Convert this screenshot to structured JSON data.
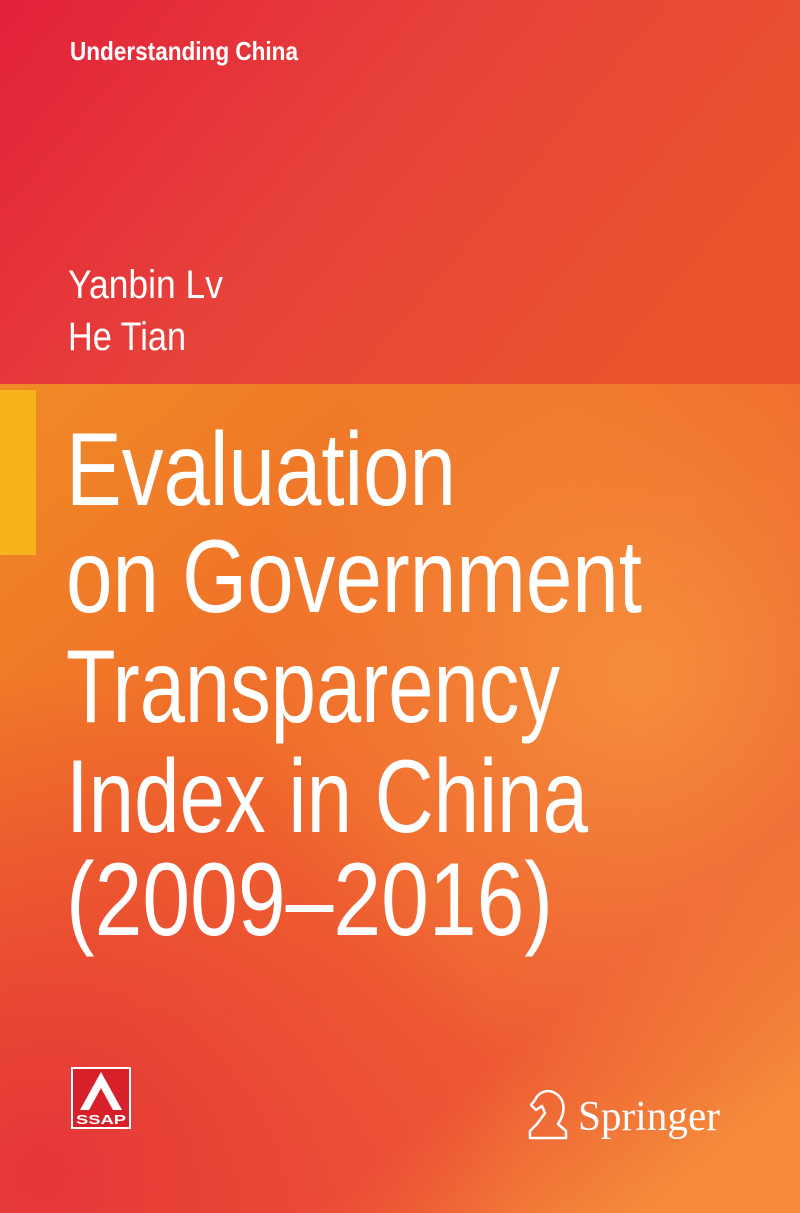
{
  "series": "Understanding China",
  "authors": [
    "Yanbin Lv",
    "He Tian"
  ],
  "title_lines": [
    "Evaluation",
    "on Government",
    "Transparency",
    "Index in China",
    "(2009–2016)"
  ],
  "publisher_logos": [
    "SSAP",
    "Springer"
  ]
}
